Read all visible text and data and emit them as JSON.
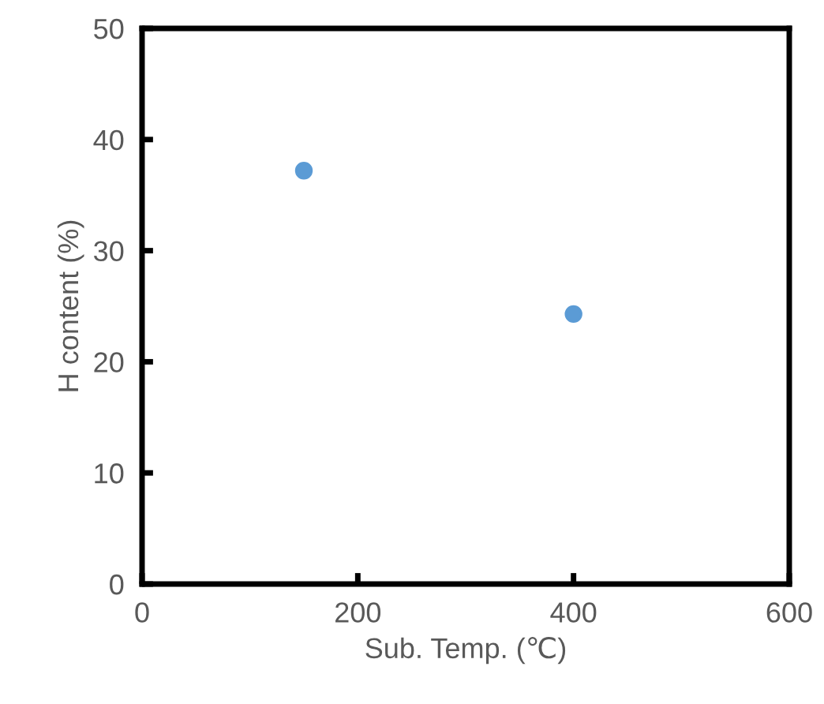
{
  "chart_data": {
    "type": "scatter",
    "xlabel": "Sub. Temp. (℃)",
    "ylabel": "H content (%)",
    "x": [
      150,
      400
    ],
    "series": [
      {
        "color": "#5b9bd5",
        "values": [
          37.2,
          24.3
        ]
      }
    ],
    "xlim": [
      0,
      600
    ],
    "xticks": [
      0,
      200,
      400,
      600
    ],
    "ylim": [
      0,
      50
    ],
    "yticks": [
      0,
      10,
      20,
      30,
      40,
      50
    ],
    "marker": "circle",
    "grid": false,
    "legend": false
  }
}
